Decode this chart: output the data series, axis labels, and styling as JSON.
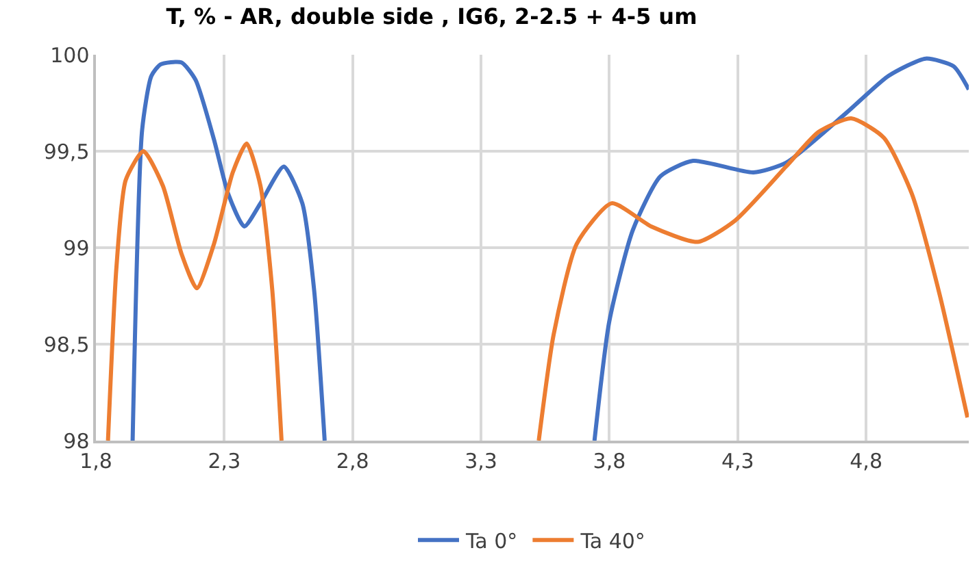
{
  "chart_data": {
    "type": "line",
    "title": "T, % - AR, double side , IG6, 2-2.5 + 4-5 um",
    "xlim": [
      1.8,
      5.2
    ],
    "xticks": [
      {
        "value": 1.8,
        "label": "1,8"
      },
      {
        "value": 2.3,
        "label": "2,3"
      },
      {
        "value": 2.8,
        "label": "2,8"
      },
      {
        "value": 3.3,
        "label": "3,3"
      },
      {
        "value": 3.8,
        "label": "3,8"
      },
      {
        "value": 4.3,
        "label": "4,3"
      },
      {
        "value": 4.8,
        "label": "4,8"
      }
    ],
    "ylim": [
      98,
      100
    ],
    "yticks": [
      98,
      {
        "value": 98.5,
        "label": "98,5"
      },
      99,
      {
        "value": 99.5,
        "label": "99,5"
      },
      100
    ],
    "grid": true,
    "legend": "bottom",
    "line_style": "solid",
    "marker": "none",
    "series": [
      {
        "name": "Ta 0°",
        "color": "#4472c4",
        "x": [
          1.943,
          1.98,
          2.016,
          2.052,
          2.133,
          2.188,
          2.26,
          2.315,
          2.378,
          2.441,
          2.532,
          2.604,
          2.65,
          2.691,
          3.2,
          3.742,
          3.8,
          3.891,
          3.999,
          4.126,
          4.361,
          4.488,
          4.724,
          4.887,
          5.032,
          5.141,
          5.2
        ],
        "values": [
          98,
          99.61,
          99.89,
          99.95,
          99.96,
          99.87,
          99.56,
          99.28,
          99.11,
          99.23,
          99.42,
          99.23,
          98.78,
          98,
          null,
          98,
          98.62,
          99.09,
          99.37,
          99.45,
          99.39,
          99.44,
          99.7,
          99.89,
          99.98,
          99.94,
          99.82
        ]
      },
      {
        "name": "Ta 40°",
        "color": "#ed7d31",
        "x": [
          1.847,
          1.88,
          1.916,
          1.985,
          2.061,
          2.133,
          2.193,
          2.26,
          2.333,
          2.387,
          2.441,
          2.487,
          2.523,
          3.0,
          3.525,
          3.583,
          3.673,
          3.809,
          3.963,
          4.144,
          4.289,
          4.488,
          4.615,
          4.742,
          4.869,
          4.978,
          5.086,
          5.195
        ],
        "values": [
          98,
          98.9,
          99.35,
          99.5,
          99.32,
          98.97,
          98.79,
          99.02,
          99.39,
          99.54,
          99.32,
          98.78,
          98,
          null,
          98,
          98.55,
          99.02,
          99.23,
          99.11,
          99.03,
          99.14,
          99.42,
          99.6,
          99.67,
          99.57,
          99.28,
          98.76,
          98.12
        ]
      }
    ]
  }
}
